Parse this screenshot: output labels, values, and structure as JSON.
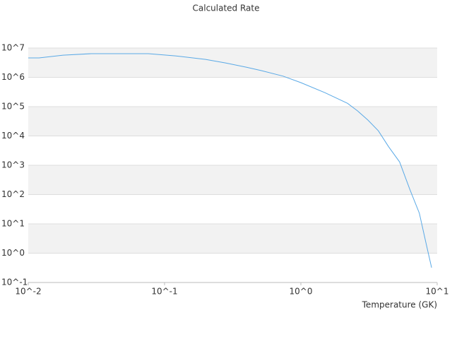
{
  "chart_data": {
    "type": "line",
    "title": "Calculated Rate",
    "x_label": "Temperature (GK)",
    "x": [
      0.01,
      0.012,
      0.018,
      0.029,
      0.076,
      0.12,
      0.2,
      0.28,
      0.4,
      0.51,
      0.74,
      1,
      1.5,
      2.2,
      2.6,
      3.1,
      3.7,
      4.4,
      5.3,
      6.3,
      7.4,
      8.3,
      9.1
    ],
    "values": [
      4600000,
      4600000,
      5700000,
      6400000,
      6400000,
      5400000,
      4100000,
      3100000,
      2200000,
      1700000,
      1100000,
      660000,
      300000,
      130000,
      72000,
      35000,
      15000,
      4300,
      1300,
      150,
      23,
      2.1,
      0.32
    ],
    "color": "#5aa9e6",
    "xscale": "log",
    "yscale": "log",
    "grid": true,
    "bands": "#f2f2f2",
    "xlim": [
      0.01,
      10
    ],
    "ylim": [
      0.1,
      10000000
    ],
    "xticks": [
      {
        "value": 0.01,
        "label": "10^-2"
      },
      {
        "value": 0.1,
        "label": "10^-1"
      },
      {
        "value": 1,
        "label": "10^0"
      },
      {
        "value": 10,
        "label": "10^1"
      }
    ],
    "yticks": [
      {
        "value": 0.1,
        "label": "10^-1"
      },
      {
        "value": 1,
        "label": "10^0"
      },
      {
        "value": 10,
        "label": "10^1"
      },
      {
        "value": 100,
        "label": "10^2"
      },
      {
        "value": 1000,
        "label": "10^3"
      },
      {
        "value": 10000,
        "label": "10^4"
      },
      {
        "value": 100000,
        "label": "10^5"
      },
      {
        "value": 1000000,
        "label": "10^6"
      },
      {
        "value": 10000000,
        "label": "10^7"
      }
    ]
  }
}
